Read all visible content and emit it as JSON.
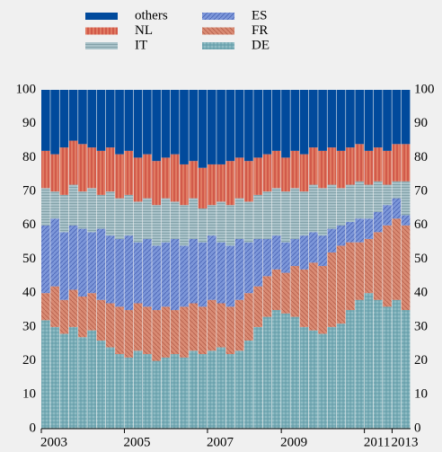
{
  "chart_data": {
    "type": "stacked_bar",
    "categories": [
      "2003",
      null,
      null,
      null,
      null,
      null,
      null,
      null,
      null,
      "2005",
      null,
      null,
      null,
      null,
      null,
      null,
      null,
      null,
      "2007",
      null,
      null,
      null,
      null,
      null,
      null,
      null,
      "2009",
      null,
      null,
      null,
      null,
      null,
      null,
      null,
      null,
      "2011",
      null,
      null,
      "2013",
      null
    ],
    "ylim": [
      0,
      100
    ],
    "yticks": [
      0,
      10,
      20,
      30,
      40,
      50,
      60,
      70,
      80,
      90,
      100
    ],
    "series": [
      {
        "name": "others",
        "color": "#014a9c",
        "values": [
          18,
          19,
          17,
          15,
          16,
          17,
          18,
          17,
          19,
          18,
          20,
          19,
          21,
          20,
          19,
          22,
          21,
          23,
          22,
          22,
          21,
          20,
          21,
          20,
          19,
          18,
          20,
          18,
          19,
          17,
          18,
          17,
          18,
          17,
          16,
          18,
          17,
          18,
          16,
          16
        ]
      },
      {
        "name": "NL",
        "color": "#e07b63",
        "values": [
          11,
          11,
          14,
          13,
          14,
          12,
          13,
          13,
          13,
          13,
          13,
          13,
          13,
          12,
          14,
          12,
          11,
          12,
          12,
          11,
          13,
          12,
          12,
          11,
          11,
          11,
          10,
          11,
          11,
          11,
          11,
          11,
          11,
          11,
          11,
          10,
          10,
          10,
          11,
          11
        ]
      },
      {
        "name": "IT",
        "color": "#a9c2c9",
        "values": [
          11,
          8,
          11,
          12,
          11,
          13,
          10,
          13,
          12,
          12,
          12,
          12,
          12,
          13,
          11,
          12,
          12,
          10,
          9,
          12,
          12,
          12,
          12,
          13,
          14,
          14,
          15,
          15,
          13,
          14,
          14,
          13,
          11,
          11,
          11,
          10,
          9,
          6,
          5,
          10
        ]
      },
      {
        "name": "ES",
        "color": "#7d97d9",
        "values": [
          20,
          20,
          20,
          19,
          20,
          18,
          21,
          20,
          20,
          22,
          18,
          20,
          19,
          19,
          21,
          18,
          19,
          19,
          19,
          18,
          18,
          18,
          15,
          14,
          11,
          10,
          9,
          8,
          10,
          9,
          9,
          7,
          6,
          6,
          7,
          6,
          6,
          6,
          6,
          3
        ]
      },
      {
        "name": "FR",
        "color": "#d98b74",
        "values": [
          8,
          12,
          10,
          11,
          12,
          11,
          12,
          13,
          14,
          14,
          14,
          14,
          15,
          15,
          13,
          15,
          14,
          14,
          15,
          13,
          14,
          15,
          14,
          12,
          12,
          12,
          12,
          15,
          17,
          20,
          20,
          22,
          23,
          20,
          17,
          16,
          20,
          24,
          24,
          25
        ]
      },
      {
        "name": "DE",
        "color": "#8fbcc4",
        "values": [
          32,
          30,
          28,
          30,
          27,
          29,
          26,
          24,
          22,
          21,
          23,
          22,
          20,
          21,
          22,
          21,
          23,
          22,
          23,
          24,
          22,
          23,
          26,
          30,
          33,
          35,
          34,
          33,
          30,
          29,
          28,
          30,
          31,
          35,
          38,
          40,
          38,
          36,
          38,
          35
        ]
      }
    ]
  }
}
